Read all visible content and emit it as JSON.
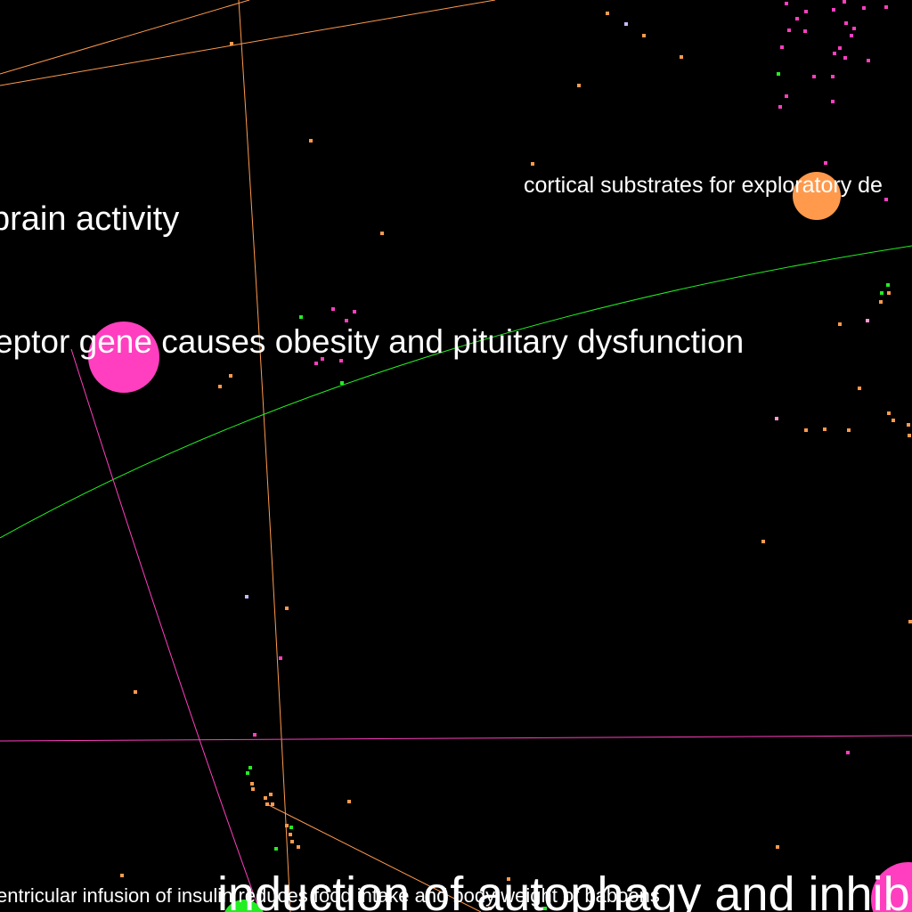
{
  "colors": {
    "background": "#000000",
    "label": "#ffffff",
    "orange": "#ff9a4d",
    "magenta": "#ff3fbf",
    "green": "#22ee22",
    "lavender": "#c8b8ff",
    "pink_light": "#ff9ad0"
  },
  "nodes": [
    {
      "label": "cortical substrates for exploratory de",
      "color": "#ff9a4d"
    },
    {
      "label": "brain activity",
      "color": "#ff9a4d"
    },
    {
      "label": "eptor gene causes obesity and pituitary dysfunction",
      "color": "#ff3fbf"
    },
    {
      "label": "induction of autophagy and inhib",
      "color": "#ff3fbf"
    },
    {
      "label": "entricular infusion of insulin reduces food intake and body weight of baboons",
      "color": "#22ee22"
    }
  ]
}
